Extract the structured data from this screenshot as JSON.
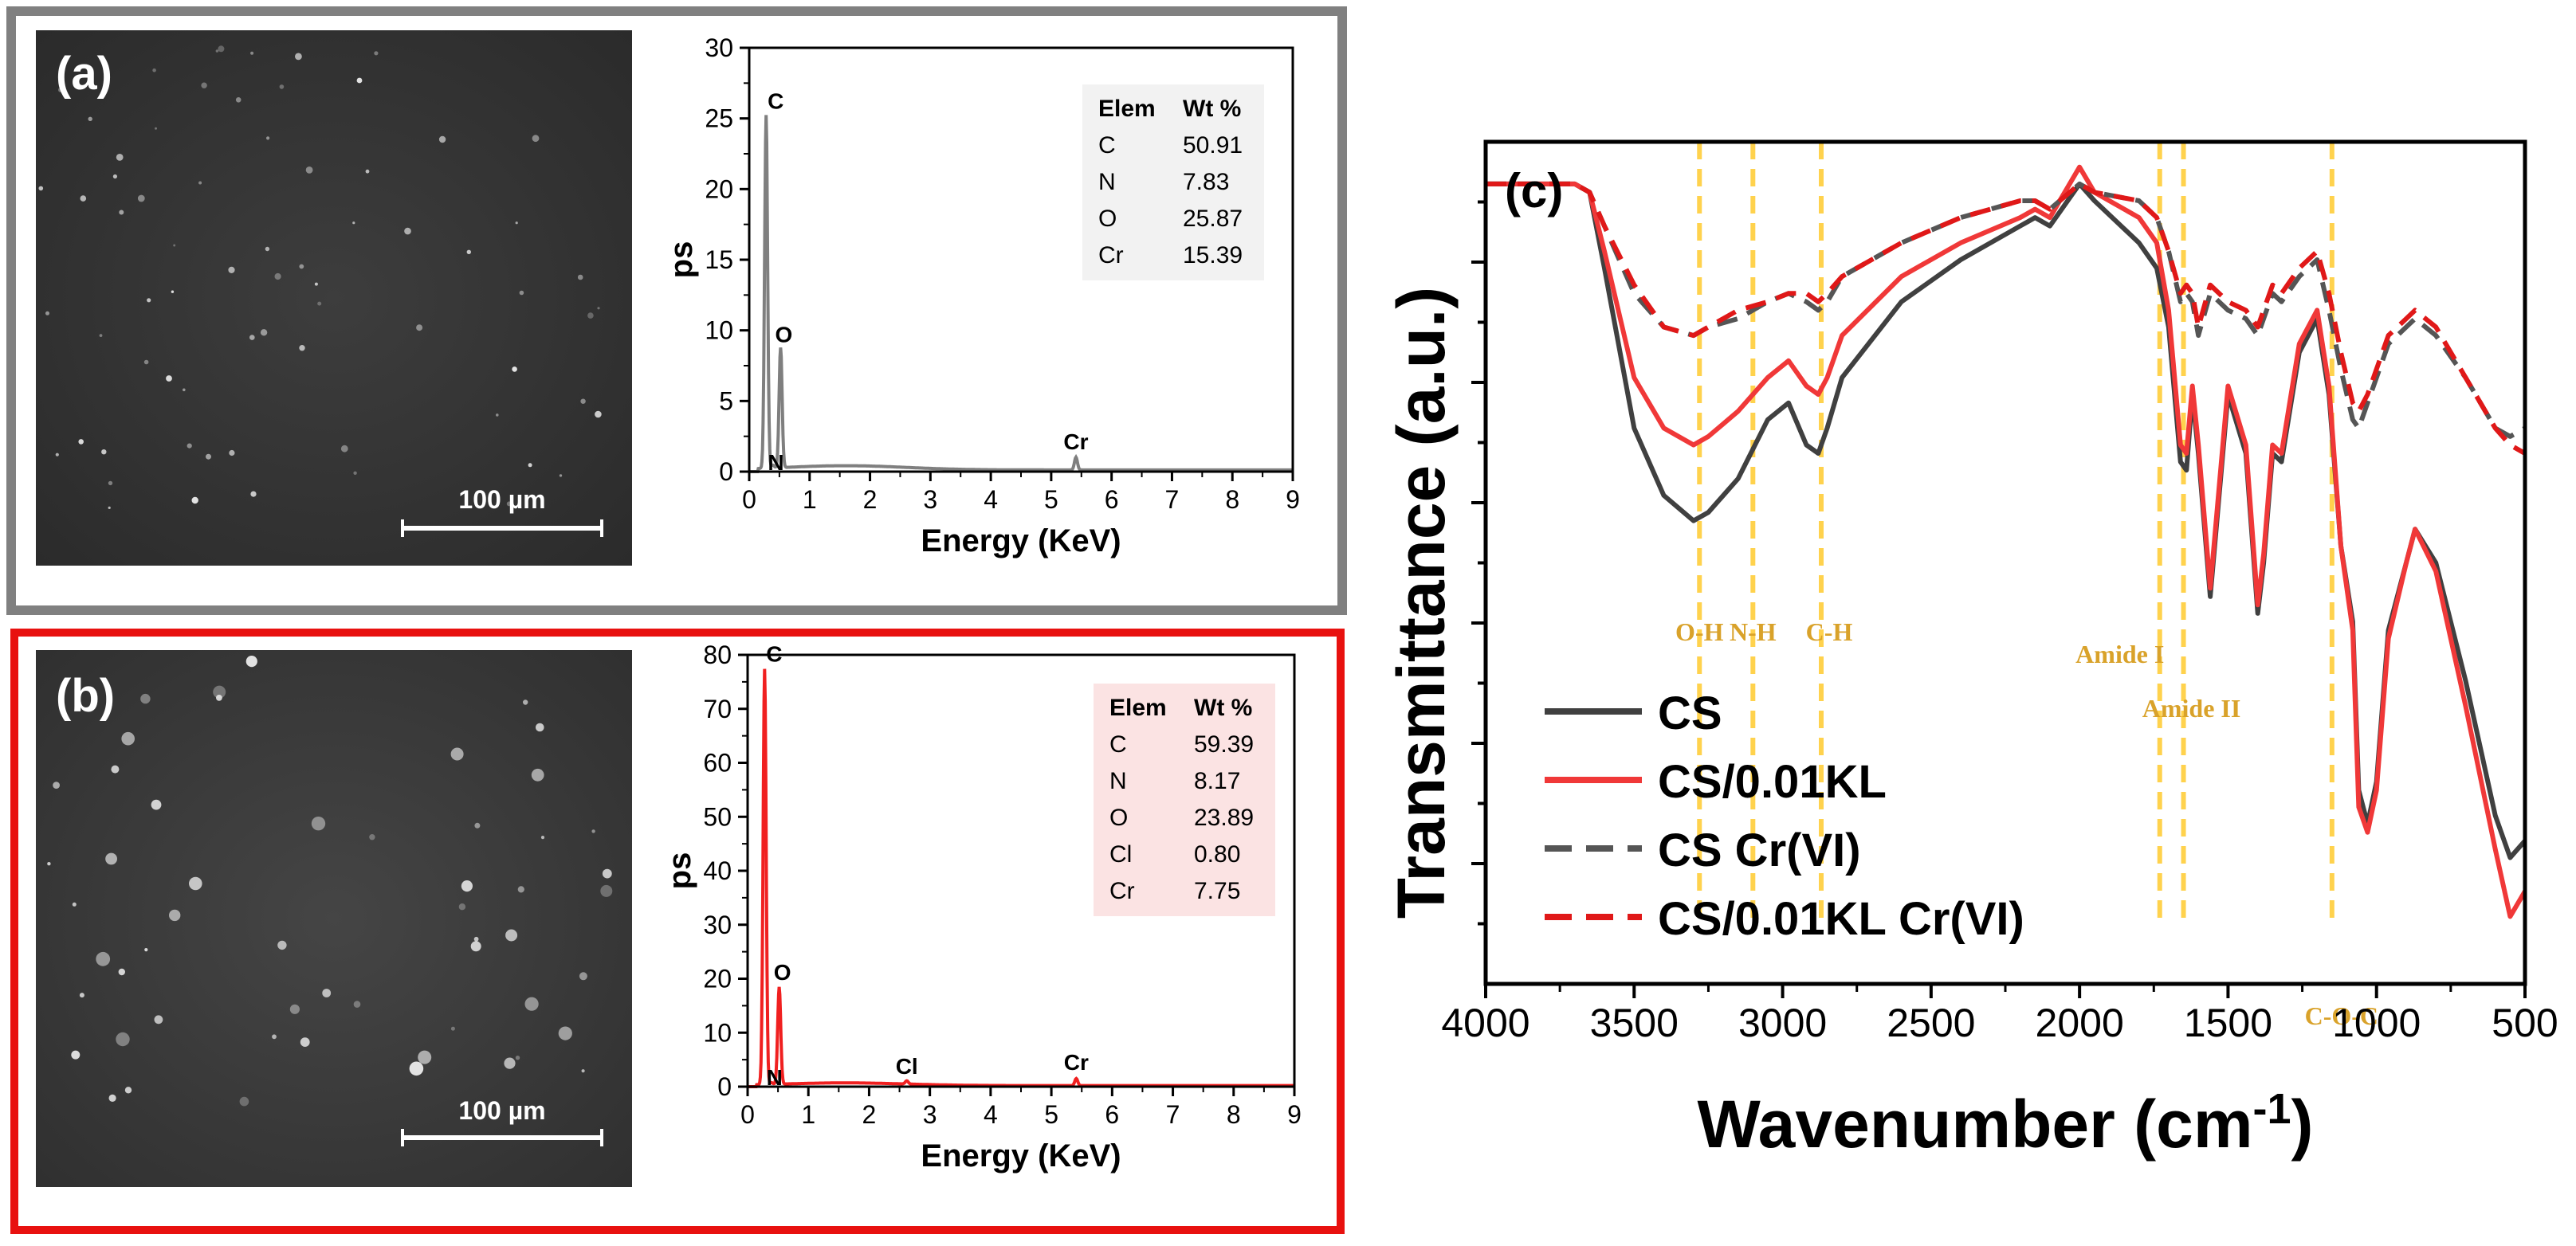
{
  "panels": {
    "a": {
      "label": "(a)",
      "frame_color": "#808080",
      "scale_bar": "100 µm",
      "eds": {
        "type": "line",
        "ylabel": "ps",
        "xlabel": "Energy (KeV)",
        "xlim": [
          0,
          9
        ],
        "ylim": [
          0,
          30
        ],
        "xticks": [
          "0",
          "1",
          "2",
          "3",
          "4",
          "5",
          "6",
          "7",
          "8",
          "9"
        ],
        "yticks": [
          "0",
          "5",
          "10",
          "15",
          "20",
          "25",
          "30"
        ],
        "line_color": "#7f7f7f",
        "peaks": [
          {
            "label": "C",
            "energy": 0.28,
            "height": 25
          },
          {
            "label": "N",
            "energy": 0.39,
            "height": 0.2
          },
          {
            "label": "O",
            "energy": 0.52,
            "height": 8.5
          },
          {
            "label": "Cr",
            "energy": 5.41,
            "height": 0.9
          }
        ],
        "baseline": 0.3,
        "table": {
          "header": [
            "Elem",
            "Wt %"
          ],
          "rows": [
            [
              "C",
              "50.91"
            ],
            [
              "N",
              "7.83"
            ],
            [
              "O",
              "25.87"
            ],
            [
              "Cr",
              "15.39"
            ]
          ],
          "fill": "#f2f2f2"
        }
      }
    },
    "b": {
      "label": "(b)",
      "frame_color": "#e8110f",
      "scale_bar": "100 µm",
      "eds": {
        "type": "line",
        "ylabel": "ps",
        "xlabel": "Energy (KeV)",
        "xlim": [
          0,
          9
        ],
        "ylim": [
          0,
          80
        ],
        "xticks": [
          "0",
          "1",
          "2",
          "3",
          "4",
          "5",
          "6",
          "7",
          "8",
          "9"
        ],
        "yticks": [
          "0",
          "10",
          "20",
          "30",
          "40",
          "50",
          "60",
          "70",
          "80"
        ],
        "line_color": "#f02020",
        "peaks": [
          {
            "label": "C",
            "energy": 0.28,
            "height": 77
          },
          {
            "label": "N",
            "energy": 0.39,
            "height": 0.3
          },
          {
            "label": "O",
            "energy": 0.52,
            "height": 18
          },
          {
            "label": "Cl",
            "energy": 2.62,
            "height": 0.6
          },
          {
            "label": "Cr",
            "energy": 5.41,
            "height": 1.3
          }
        ],
        "baseline": 0.5,
        "table": {
          "header": [
            "Elem",
            "Wt %"
          ],
          "rows": [
            [
              "C",
              "59.39"
            ],
            [
              "N",
              "8.17"
            ],
            [
              "O",
              "23.89"
            ],
            [
              "Cl",
              "0.80"
            ],
            [
              "Cr",
              "7.75"
            ]
          ],
          "fill": "#fbe3e3"
        }
      }
    }
  },
  "chart_data": {
    "type": "line",
    "label": "(c)",
    "xlabel": "Wavenumber (cm",
    "xlabel_sup": "-1",
    "xlabel_close": ")",
    "ylabel": "Transmittance (a.u.)",
    "xlim": [
      4000,
      500
    ],
    "ylim": [
      0,
      1
    ],
    "xticks": [
      "4000",
      "3500",
      "3000",
      "2500",
      "2000",
      "1500",
      "1000",
      "500"
    ],
    "annotation_color": "#d9a22a",
    "band_color": "#ffd24d",
    "annotations": [
      {
        "label": "O-H",
        "wavenumber": 3280
      },
      {
        "label": "N-H",
        "wavenumber": 3100
      },
      {
        "label": "C-H",
        "wavenumber": 2870
      },
      {
        "label": "Amide I",
        "wavenumber": 1730
      },
      {
        "label": "Amide II",
        "wavenumber": 1650
      },
      {
        "label": "C-O-C",
        "wavenumber": 1150
      }
    ],
    "series": [
      {
        "name": "CS",
        "color": "#404040",
        "dash": false,
        "x": [
          4000,
          3700,
          3650,
          3600,
          3500,
          3400,
          3300,
          3250,
          3150,
          3050,
          2980,
          2920,
          2880,
          2850,
          2800,
          2600,
          2400,
          2200,
          2150,
          2100,
          2000,
          1950,
          1800,
          1740,
          1700,
          1660,
          1640,
          1620,
          1600,
          1560,
          1500,
          1440,
          1400,
          1380,
          1350,
          1320,
          1260,
          1200,
          1160,
          1120,
          1080,
          1060,
          1030,
          1000,
          960,
          900,
          870,
          800,
          700,
          600,
          550,
          500
        ],
        "y": [
          0.95,
          0.95,
          0.94,
          0.85,
          0.66,
          0.58,
          0.55,
          0.56,
          0.6,
          0.67,
          0.69,
          0.64,
          0.63,
          0.66,
          0.72,
          0.81,
          0.86,
          0.9,
          0.91,
          0.9,
          0.95,
          0.93,
          0.88,
          0.85,
          0.78,
          0.62,
          0.61,
          0.7,
          0.63,
          0.46,
          0.7,
          0.63,
          0.44,
          0.5,
          0.63,
          0.62,
          0.75,
          0.79,
          0.7,
          0.52,
          0.43,
          0.23,
          0.19,
          0.24,
          0.42,
          0.5,
          0.54,
          0.5,
          0.36,
          0.2,
          0.15,
          0.17
        ]
      },
      {
        "name": "CS/0.01KL",
        "color": "#f03838",
        "dash": false,
        "x": [
          4000,
          3700,
          3650,
          3600,
          3500,
          3400,
          3300,
          3250,
          3150,
          3050,
          2980,
          2920,
          2880,
          2850,
          2800,
          2600,
          2400,
          2200,
          2150,
          2100,
          2000,
          1950,
          1800,
          1740,
          1700,
          1660,
          1640,
          1620,
          1600,
          1560,
          1500,
          1440,
          1400,
          1380,
          1350,
          1320,
          1260,
          1200,
          1160,
          1120,
          1080,
          1060,
          1030,
          1000,
          960,
          900,
          870,
          800,
          700,
          600,
          550,
          500
        ],
        "y": [
          0.95,
          0.95,
          0.94,
          0.87,
          0.72,
          0.66,
          0.64,
          0.65,
          0.68,
          0.72,
          0.74,
          0.71,
          0.7,
          0.72,
          0.77,
          0.84,
          0.88,
          0.91,
          0.92,
          0.91,
          0.97,
          0.94,
          0.91,
          0.88,
          0.8,
          0.64,
          0.63,
          0.71,
          0.64,
          0.47,
          0.71,
          0.64,
          0.45,
          0.51,
          0.64,
          0.63,
          0.76,
          0.8,
          0.71,
          0.52,
          0.42,
          0.21,
          0.18,
          0.23,
          0.41,
          0.5,
          0.54,
          0.49,
          0.33,
          0.16,
          0.08,
          0.11
        ]
      },
      {
        "name": "CS Cr(VI)",
        "color": "#555555",
        "dash": true,
        "x": [
          4000,
          3700,
          3650,
          3600,
          3500,
          3400,
          3300,
          3250,
          3150,
          3050,
          2980,
          2920,
          2880,
          2850,
          2800,
          2600,
          2400,
          2200,
          2150,
          2100,
          2000,
          1950,
          1800,
          1740,
          1700,
          1660,
          1640,
          1620,
          1600,
          1560,
          1500,
          1440,
          1400,
          1380,
          1350,
          1320,
          1260,
          1200,
          1160,
          1120,
          1080,
          1060,
          1030,
          1000,
          960,
          900,
          870,
          800,
          700,
          600,
          550,
          500
        ],
        "y": [
          0.95,
          0.95,
          0.94,
          0.9,
          0.82,
          0.78,
          0.77,
          0.78,
          0.79,
          0.81,
          0.82,
          0.81,
          0.8,
          0.81,
          0.84,
          0.88,
          0.91,
          0.93,
          0.93,
          0.92,
          0.95,
          0.94,
          0.93,
          0.91,
          0.87,
          0.81,
          0.82,
          0.81,
          0.77,
          0.82,
          0.8,
          0.79,
          0.77,
          0.79,
          0.82,
          0.81,
          0.84,
          0.86,
          0.8,
          0.73,
          0.67,
          0.66,
          0.69,
          0.72,
          0.76,
          0.78,
          0.79,
          0.77,
          0.72,
          0.66,
          0.65,
          0.66
        ]
      },
      {
        "name": "CS/0.01KL Cr(VI)",
        "color": "#e01818",
        "dash": true,
        "x": [
          4000,
          3700,
          3650,
          3600,
          3500,
          3400,
          3300,
          3250,
          3150,
          3050,
          2980,
          2920,
          2880,
          2850,
          2800,
          2600,
          2400,
          2200,
          2150,
          2100,
          2000,
          1950,
          1800,
          1740,
          1700,
          1660,
          1640,
          1620,
          1600,
          1560,
          1500,
          1440,
          1400,
          1380,
          1350,
          1320,
          1260,
          1200,
          1160,
          1120,
          1080,
          1060,
          1030,
          1000,
          960,
          900,
          870,
          800,
          700,
          600,
          550,
          500
        ],
        "y": [
          0.95,
          0.95,
          0.94,
          0.9,
          0.83,
          0.78,
          0.77,
          0.78,
          0.8,
          0.81,
          0.82,
          0.82,
          0.81,
          0.82,
          0.84,
          0.88,
          0.91,
          0.93,
          0.93,
          0.92,
          0.95,
          0.94,
          0.93,
          0.91,
          0.87,
          0.82,
          0.83,
          0.82,
          0.78,
          0.83,
          0.81,
          0.8,
          0.78,
          0.8,
          0.83,
          0.82,
          0.85,
          0.87,
          0.82,
          0.75,
          0.69,
          0.68,
          0.7,
          0.73,
          0.77,
          0.79,
          0.8,
          0.78,
          0.72,
          0.66,
          0.64,
          0.63
        ]
      }
    ],
    "legend": [
      {
        "label": "CS"
      },
      {
        "label": "CS/0.01KL"
      },
      {
        "label": "CS Cr(VI)"
      },
      {
        "label": "CS/0.01KL Cr(VI)"
      }
    ]
  }
}
